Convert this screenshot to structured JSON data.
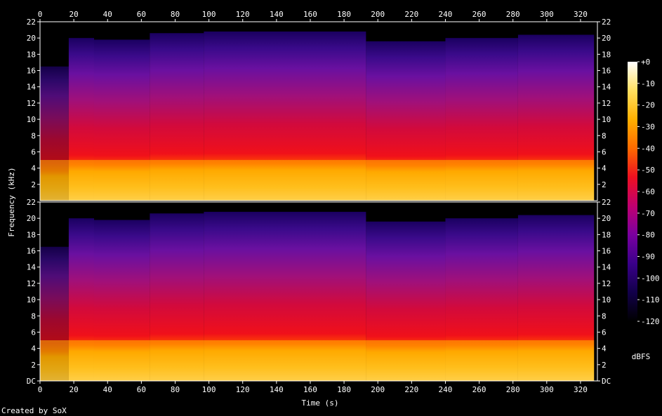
{
  "footer": {
    "credit": "Created by SoX"
  },
  "chart_data": {
    "type": "heatmap",
    "xlabel": "Time (s)",
    "ylabel": "Frequency (kHz)",
    "xlim": [
      0,
      330
    ],
    "x_ticks": [
      0,
      20,
      40,
      60,
      80,
      100,
      120,
      140,
      160,
      180,
      200,
      220,
      240,
      260,
      280,
      300,
      320
    ],
    "channels": [
      {
        "ylim": [
          0,
          22
        ],
        "y_ticks": [
          2,
          4,
          6,
          8,
          10,
          12,
          14,
          16,
          18,
          20,
          22
        ],
        "y_tick_labels": [
          "2",
          "4",
          "6",
          "8",
          "10",
          "12",
          "14",
          "16",
          "18",
          "20",
          "22"
        ]
      },
      {
        "ylim": [
          0,
          22
        ],
        "y_ticks": [
          0,
          2,
          4,
          6,
          8,
          10,
          12,
          14,
          16,
          18,
          20,
          22
        ],
        "y_tick_labels": [
          "DC",
          "2",
          "4",
          "6",
          "8",
          "10",
          "12",
          "14",
          "16",
          "18",
          "20",
          "22"
        ]
      }
    ],
    "colorbar": {
      "label": "dBFS",
      "range": [
        -120,
        0
      ],
      "ticks": [
        0,
        -10,
        -20,
        -30,
        -40,
        -50,
        -60,
        -70,
        -80,
        -90,
        -100,
        -110,
        -120
      ],
      "tick_labels": [
        "+0",
        "-10",
        "-20",
        "-30",
        "-40",
        "-50",
        "-60",
        "-70",
        "-80",
        "-90",
        "-100",
        "-110",
        "-120"
      ]
    },
    "colors": {
      "background": "#000000",
      "scale": [
        "#000000",
        "#12004a",
        "#3a008a",
        "#7a00a0",
        "#c00070",
        "#ee1020",
        "#ff6a00",
        "#ffb000",
        "#ffe060",
        "#ffffff"
      ]
    },
    "cutoff_segments": [
      {
        "start": 0,
        "end": 17,
        "khz": 16.5
      },
      {
        "start": 17,
        "end": 32,
        "khz": 20.0
      },
      {
        "start": 32,
        "end": 65,
        "khz": 19.8
      },
      {
        "start": 65,
        "end": 97,
        "khz": 20.6
      },
      {
        "start": 97,
        "end": 193,
        "khz": 20.8
      },
      {
        "start": 193,
        "end": 240,
        "khz": 19.6
      },
      {
        "start": 240,
        "end": 283,
        "khz": 20.0
      },
      {
        "start": 283,
        "end": 328,
        "khz": 20.4
      }
    ],
    "bright_band_khz": 5.0,
    "end_time": 328
  }
}
